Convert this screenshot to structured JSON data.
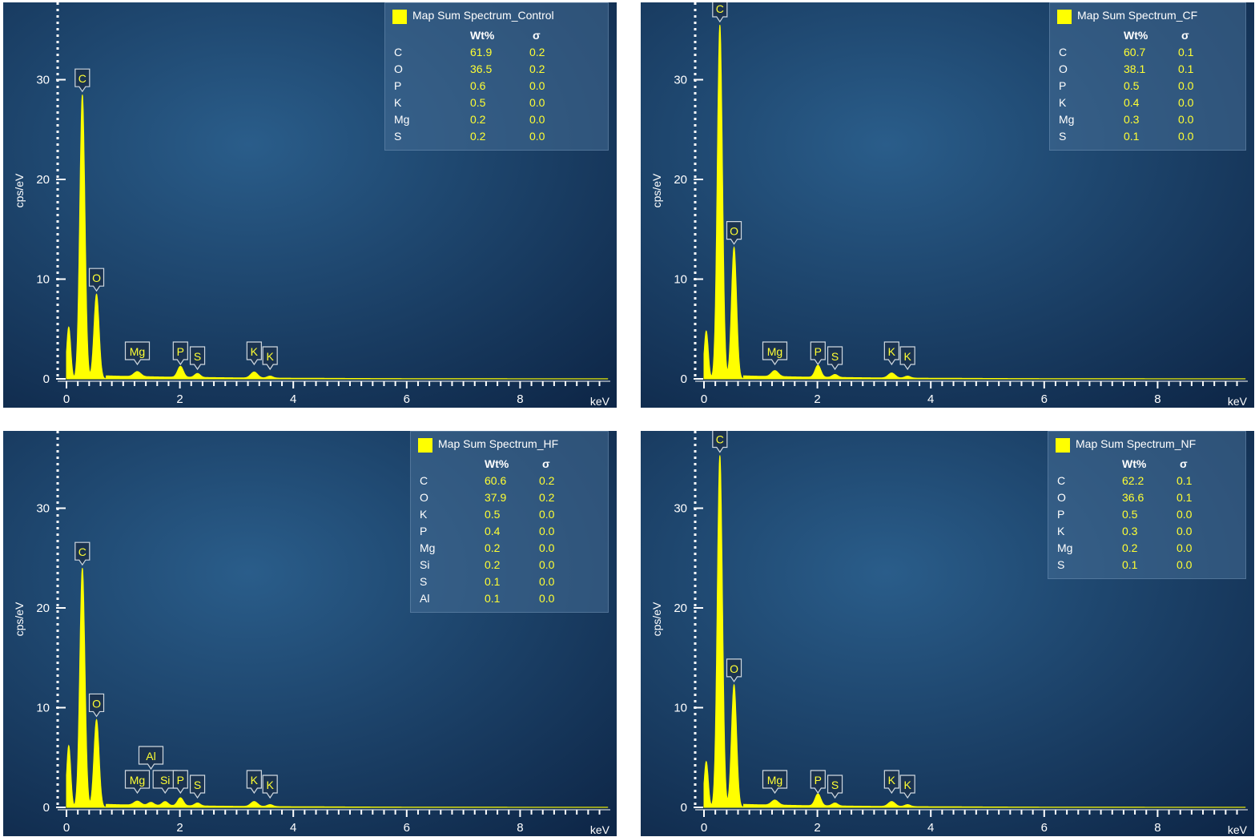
{
  "colors": {
    "background_top": "#1f4e78",
    "background_bottom": "#0f2a4d",
    "spectrum": "#ffff00",
    "axis": "#ffffff"
  },
  "chart_data": [
    {
      "type": "area",
      "legend_title": "Map Sum Spectrum_Control",
      "ylabel": "cps/eV",
      "xunit": "keV",
      "xlim": [
        0,
        9.6
      ],
      "ylim": [
        0,
        37
      ],
      "x_ticks": [
        "0",
        "2",
        "4",
        "6",
        "8"
      ],
      "y_ticks": [
        "0",
        "10",
        "20",
        "30"
      ],
      "table_headers": [
        "Wt%",
        "σ"
      ],
      "composition": [
        {
          "element": "C",
          "wt": "61.9",
          "sigma": "0.2"
        },
        {
          "element": "O",
          "wt": "36.5",
          "sigma": "0.2"
        },
        {
          "element": "P",
          "wt": "0.6",
          "sigma": "0.0"
        },
        {
          "element": "K",
          "wt": "0.5",
          "sigma": "0.0"
        },
        {
          "element": "Mg",
          "wt": "0.2",
          "sigma": "0.0"
        },
        {
          "element": "S",
          "wt": "0.2",
          "sigma": "0.0"
        }
      ],
      "peaks": [
        {
          "x": 0.04,
          "height": 5.2,
          "width": 0.035,
          "label": ""
        },
        {
          "x": 0.28,
          "height": 28.5,
          "width": 0.045,
          "label": "C"
        },
        {
          "x": 0.53,
          "height": 8.5,
          "width": 0.045,
          "label": "O"
        },
        {
          "x": 1.25,
          "height": 0.5,
          "width": 0.06,
          "label": "Mg"
        },
        {
          "x": 2.01,
          "height": 1.1,
          "width": 0.05,
          "label": "P"
        },
        {
          "x": 2.31,
          "height": 0.4,
          "width": 0.05,
          "label": "S"
        },
        {
          "x": 3.31,
          "height": 0.6,
          "width": 0.06,
          "label": "K"
        },
        {
          "x": 3.59,
          "height": 0.2,
          "width": 0.05,
          "label": "K"
        }
      ],
      "background_level": 0.3
    },
    {
      "type": "area",
      "legend_title": "Map Sum Spectrum_CF",
      "ylabel": "cps/eV",
      "xunit": "keV",
      "xlim": [
        0,
        9.6
      ],
      "ylim": [
        0,
        37
      ],
      "x_ticks": [
        "0",
        "2",
        "4",
        "6",
        "8"
      ],
      "y_ticks": [
        "0",
        "10",
        "20",
        "30"
      ],
      "table_headers": [
        "Wt%",
        "σ"
      ],
      "composition": [
        {
          "element": "C",
          "wt": "60.7",
          "sigma": "0.1"
        },
        {
          "element": "O",
          "wt": "38.1",
          "sigma": "0.1"
        },
        {
          "element": "P",
          "wt": "0.5",
          "sigma": "0.0"
        },
        {
          "element": "K",
          "wt": "0.4",
          "sigma": "0.0"
        },
        {
          "element": "Mg",
          "wt": "0.3",
          "sigma": "0.0"
        },
        {
          "element": "S",
          "wt": "0.1",
          "sigma": "0.0"
        }
      ],
      "peaks": [
        {
          "x": 0.04,
          "height": 4.8,
          "width": 0.035,
          "label": ""
        },
        {
          "x": 0.28,
          "height": 35.5,
          "width": 0.045,
          "label": "C"
        },
        {
          "x": 0.53,
          "height": 13.2,
          "width": 0.045,
          "label": "O"
        },
        {
          "x": 1.25,
          "height": 0.6,
          "width": 0.06,
          "label": "Mg"
        },
        {
          "x": 2.01,
          "height": 1.2,
          "width": 0.05,
          "label": "P"
        },
        {
          "x": 2.31,
          "height": 0.3,
          "width": 0.05,
          "label": "S"
        },
        {
          "x": 3.31,
          "height": 0.5,
          "width": 0.06,
          "label": "K"
        },
        {
          "x": 3.59,
          "height": 0.2,
          "width": 0.05,
          "label": "K"
        }
      ],
      "background_level": 0.3
    },
    {
      "type": "area",
      "legend_title": "Map Sum Spectrum_HF",
      "ylabel": "cps/eV",
      "xunit": "keV",
      "xlim": [
        0,
        9.6
      ],
      "ylim": [
        0,
        37
      ],
      "x_ticks": [
        "0",
        "2",
        "4",
        "6",
        "8"
      ],
      "y_ticks": [
        "0",
        "10",
        "20",
        "30"
      ],
      "table_headers": [
        "Wt%",
        "σ"
      ],
      "composition": [
        {
          "element": "C",
          "wt": "60.6",
          "sigma": "0.2"
        },
        {
          "element": "O",
          "wt": "37.9",
          "sigma": "0.2"
        },
        {
          "element": "K",
          "wt": "0.5",
          "sigma": "0.0"
        },
        {
          "element": "P",
          "wt": "0.4",
          "sigma": "0.0"
        },
        {
          "element": "Mg",
          "wt": "0.2",
          "sigma": "0.0"
        },
        {
          "element": "Si",
          "wt": "0.2",
          "sigma": "0.0"
        },
        {
          "element": "S",
          "wt": "0.1",
          "sigma": "0.0"
        },
        {
          "element": "Al",
          "wt": "0.1",
          "sigma": "0.0"
        }
      ],
      "peaks": [
        {
          "x": 0.04,
          "height": 6.2,
          "width": 0.035,
          "label": ""
        },
        {
          "x": 0.28,
          "height": 24.0,
          "width": 0.045,
          "label": "C"
        },
        {
          "x": 0.53,
          "height": 8.8,
          "width": 0.045,
          "label": "O"
        },
        {
          "x": 1.25,
          "height": 0.4,
          "width": 0.06,
          "label": "Mg"
        },
        {
          "x": 1.49,
          "height": 0.3,
          "width": 0.05,
          "label": "Al"
        },
        {
          "x": 1.74,
          "height": 0.4,
          "width": 0.05,
          "label": "Si"
        },
        {
          "x": 2.01,
          "height": 0.8,
          "width": 0.05,
          "label": "P"
        },
        {
          "x": 2.31,
          "height": 0.3,
          "width": 0.05,
          "label": "S"
        },
        {
          "x": 3.31,
          "height": 0.5,
          "width": 0.06,
          "label": "K"
        },
        {
          "x": 3.59,
          "height": 0.2,
          "width": 0.05,
          "label": "K"
        }
      ],
      "background_level": 0.3
    },
    {
      "type": "area",
      "legend_title": "Map Sum Spectrum_NF",
      "ylabel": "cps/eV",
      "xunit": "keV",
      "xlim": [
        0,
        9.6
      ],
      "ylim": [
        0,
        37
      ],
      "x_ticks": [
        "0",
        "2",
        "4",
        "6",
        "8"
      ],
      "y_ticks": [
        "0",
        "10",
        "20",
        "30"
      ],
      "table_headers": [
        "Wt%",
        "σ"
      ],
      "composition": [
        {
          "element": "C",
          "wt": "62.2",
          "sigma": "0.1"
        },
        {
          "element": "O",
          "wt": "36.6",
          "sigma": "0.1"
        },
        {
          "element": "P",
          "wt": "0.5",
          "sigma": "0.0"
        },
        {
          "element": "K",
          "wt": "0.3",
          "sigma": "0.0"
        },
        {
          "element": "Mg",
          "wt": "0.2",
          "sigma": "0.0"
        },
        {
          "element": "S",
          "wt": "0.1",
          "sigma": "0.0"
        }
      ],
      "peaks": [
        {
          "x": 0.04,
          "height": 4.6,
          "width": 0.035,
          "label": ""
        },
        {
          "x": 0.28,
          "height": 35.3,
          "width": 0.045,
          "label": "C"
        },
        {
          "x": 0.53,
          "height": 12.3,
          "width": 0.045,
          "label": "O"
        },
        {
          "x": 1.25,
          "height": 0.5,
          "width": 0.06,
          "label": "Mg"
        },
        {
          "x": 2.01,
          "height": 1.2,
          "width": 0.05,
          "label": "P"
        },
        {
          "x": 2.31,
          "height": 0.3,
          "width": 0.05,
          "label": "S"
        },
        {
          "x": 3.31,
          "height": 0.5,
          "width": 0.06,
          "label": "K"
        },
        {
          "x": 3.59,
          "height": 0.2,
          "width": 0.05,
          "label": "K"
        }
      ],
      "background_level": 0.3
    }
  ]
}
